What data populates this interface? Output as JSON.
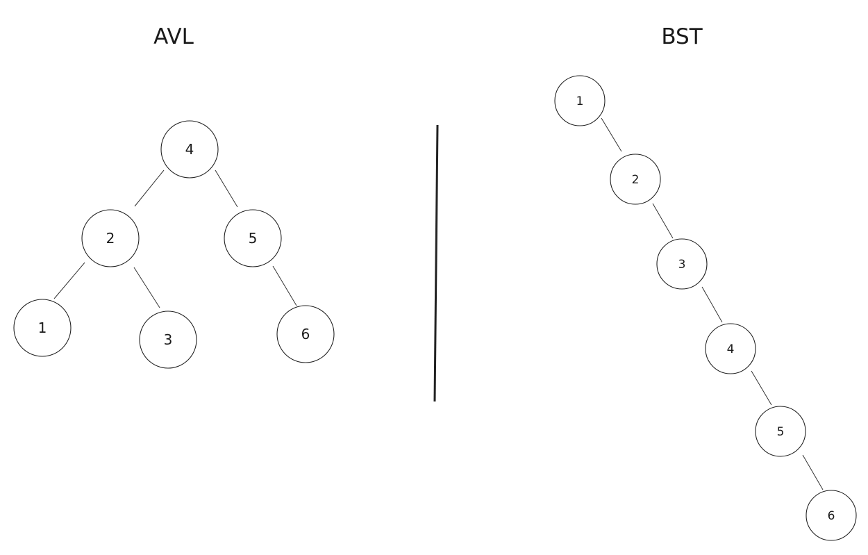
{
  "avl": {
    "title": "AVL",
    "nodes": [
      {
        "id": "4",
        "label": "4"
      },
      {
        "id": "2",
        "label": "2"
      },
      {
        "id": "5",
        "label": "5"
      },
      {
        "id": "1",
        "label": "1"
      },
      {
        "id": "3",
        "label": "3"
      },
      {
        "id": "6",
        "label": "6"
      }
    ],
    "edges": [
      [
        "4",
        "2"
      ],
      [
        "4",
        "5"
      ],
      [
        "2",
        "1"
      ],
      [
        "2",
        "3"
      ],
      [
        "5",
        "6"
      ]
    ]
  },
  "bst": {
    "title": "BST",
    "nodes": [
      {
        "id": "1",
        "label": "1"
      },
      {
        "id": "2",
        "label": "2"
      },
      {
        "id": "3",
        "label": "3"
      },
      {
        "id": "4",
        "label": "4"
      },
      {
        "id": "5",
        "label": "5"
      },
      {
        "id": "6",
        "label": "6"
      }
    ],
    "edges": [
      [
        "1",
        "2"
      ],
      [
        "2",
        "3"
      ],
      [
        "3",
        "4"
      ],
      [
        "4",
        "5"
      ],
      [
        "5",
        "6"
      ]
    ]
  }
}
